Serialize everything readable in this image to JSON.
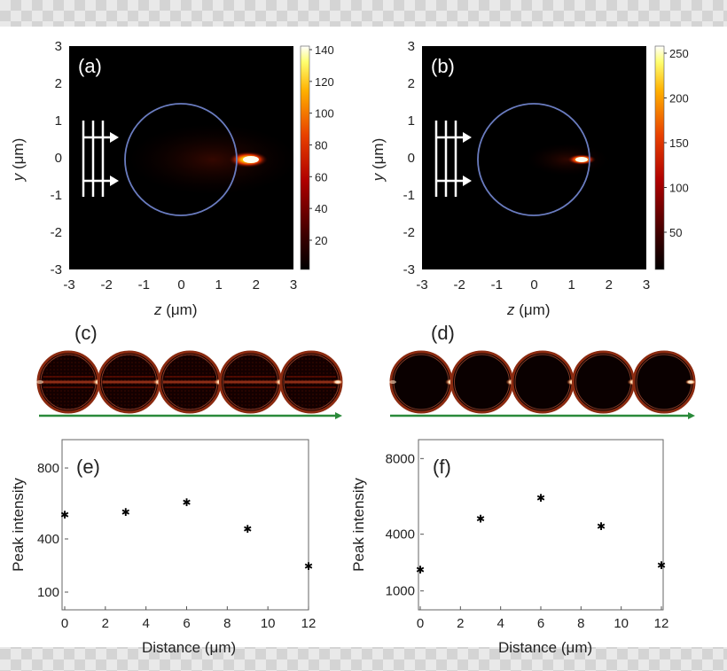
{
  "panels": {
    "a": {
      "label": "(a)"
    },
    "b": {
      "label": "(b)"
    },
    "c": {
      "label": "(c)"
    },
    "d": {
      "label": "(d)"
    },
    "e": {
      "label": "(e)"
    },
    "f": {
      "label": "(f)"
    }
  },
  "field_axes": {
    "xlabel": "z (μm)",
    "xlabel_var": "z",
    "xlabel_rest": " (μm)",
    "ylabel_var": "y",
    "ylabel_rest": " (μm)",
    "ticks": [
      "-3",
      "-2",
      "-1",
      "0",
      "1",
      "2",
      "3"
    ]
  },
  "colorbars": {
    "a": {
      "ticks": [
        "140",
        "120",
        "100",
        "80",
        "60",
        "40",
        "20"
      ]
    },
    "b": {
      "ticks": [
        "250",
        "200",
        "150",
        "100",
        "50"
      ]
    }
  },
  "colors": {
    "colormap": [
      "#000000",
      "#3a0000",
      "#a00000",
      "#e84000",
      "#ffb000",
      "#ffff60",
      "#ffffff"
    ],
    "circle": "#7080c0",
    "arrow_green": "#2a8a3a"
  },
  "chart_data": [
    {
      "type": "scatter",
      "panel": "e",
      "x": [
        0,
        3,
        6,
        9,
        12
      ],
      "y": [
        540,
        555,
        610,
        460,
        250
      ],
      "xlabel": "Distance (μm)",
      "ylabel": "Peak intensity",
      "xlim": [
        0,
        12
      ],
      "ylim": [
        0,
        960
      ],
      "xticks": [
        "0",
        "2",
        "4",
        "6",
        "8",
        "10",
        "12"
      ],
      "yticks": [
        "800",
        "400",
        "100"
      ],
      "grid": false
    },
    {
      "type": "scatter",
      "panel": "f",
      "x": [
        0,
        3,
        6,
        9,
        12
      ],
      "y": [
        2150,
        4850,
        5950,
        4450,
        2400
      ],
      "xlabel": "Distance (μm)",
      "ylabel": "Peak intensity",
      "xlim": [
        0,
        12
      ],
      "ylim": [
        0,
        9000
      ],
      "xticks": [
        "0",
        "2",
        "4",
        "6",
        "8",
        "10",
        "12"
      ],
      "yticks": [
        "8000",
        "4000",
        "1000"
      ],
      "grid": false
    }
  ]
}
